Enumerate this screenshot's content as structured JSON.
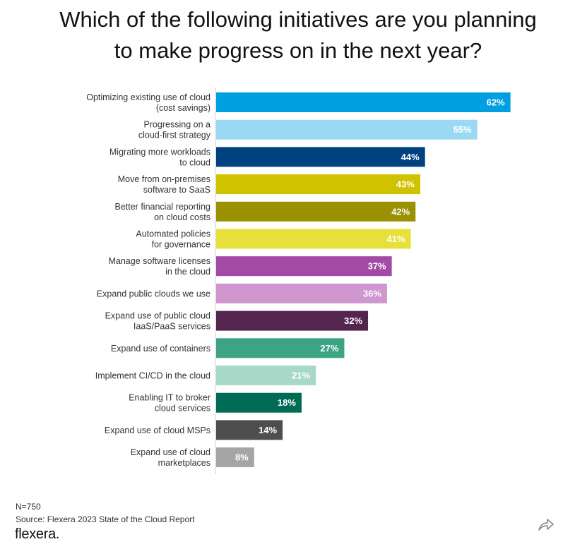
{
  "title": "Which of the following initiatives are you planning\nto make progress on in the next year?",
  "chart_data": {
    "type": "bar",
    "orientation": "horizontal",
    "title": "Which of the following initiatives are you planning to make progress on in the next year?",
    "categories": [
      "Optimizing existing use of cloud\n(cost savings)",
      "Progressing on a\ncloud-first strategy",
      "Migrating more workloads\nto cloud",
      "Move from on-premises\nsoftware to SaaS",
      "Better financial reporting\non cloud costs",
      "Automated policies\nfor  governance",
      "Manage software licenses\nin the cloud",
      "Expand public clouds we use",
      "Expand use of public cloud\nIaaS/PaaS services",
      "Expand use of containers",
      "Implement CI/CD in the cloud",
      "Enabling IT to broker\ncloud services",
      "Expand use of cloud MSPs",
      "Expand use of cloud\nmarketplaces"
    ],
    "values": [
      62,
      55,
      44,
      43,
      42,
      41,
      37,
      36,
      32,
      27,
      21,
      18,
      14,
      8
    ],
    "value_labels": [
      "62%",
      "55%",
      "44%",
      "43%",
      "42%",
      "41%",
      "37%",
      "36%",
      "32%",
      "27%",
      "21%",
      "18%",
      "14%",
      "8%"
    ],
    "colors": [
      "#009fdf",
      "#9ad9f4",
      "#00427f",
      "#cfc300",
      "#9a9100",
      "#e8e03a",
      "#a24aa5",
      "#cf96cf",
      "#53254f",
      "#3ca485",
      "#a8d9c8",
      "#006b55",
      "#4e4e4e",
      "#a5a5a5"
    ],
    "xlim": [
      0,
      100
    ],
    "xlabel": "",
    "ylabel": "",
    "grid": false,
    "legend": "none"
  },
  "footer": {
    "n": "N=750",
    "source": "Source: Flexera 2023 State of the Cloud Report",
    "brand": "flexera."
  },
  "icons": {
    "share": "share-arrow-icon"
  }
}
